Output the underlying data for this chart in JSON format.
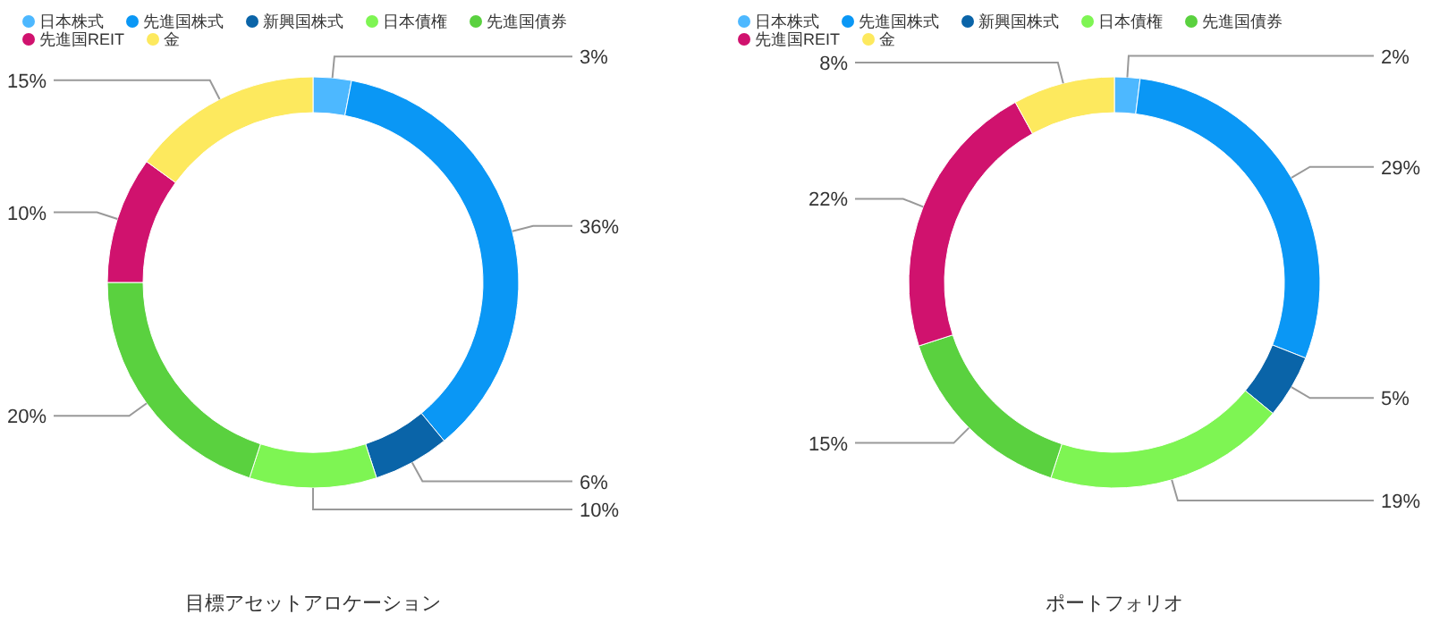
{
  "chart_data": [
    {
      "type": "donut",
      "title": "目標アセットアロケーション",
      "legend": "top left",
      "categories": [
        "日本株式",
        "先進国株式",
        "新興国株式",
        "日本債権",
        "先進国債券",
        "先進国REIT",
        "金"
      ],
      "values": [
        3,
        36,
        6,
        10,
        20,
        10,
        15
      ],
      "value_labels": [
        "3%",
        "36%",
        "6%",
        "10%",
        "20%",
        "10%",
        "15%"
      ],
      "colors": [
        "#4db8ff",
        "#0a97f5",
        "#0a64a8",
        "#7ef553",
        "#5ad13f",
        "#d0126e",
        "#fde95e"
      ]
    },
    {
      "type": "donut",
      "title": "ポートフォリオ",
      "legend": "top left",
      "categories": [
        "日本株式",
        "先進国株式",
        "新興国株式",
        "日本債権",
        "先進国債券",
        "先進国REIT",
        "金"
      ],
      "values": [
        2,
        29,
        5,
        19,
        15,
        22,
        8
      ],
      "value_labels": [
        "2%",
        "29%",
        "5%",
        "19%",
        "15%",
        "22%",
        "8%"
      ],
      "colors": [
        "#4db8ff",
        "#0a97f5",
        "#0a64a8",
        "#7ef553",
        "#5ad13f",
        "#d0126e",
        "#fde95e"
      ]
    }
  ]
}
